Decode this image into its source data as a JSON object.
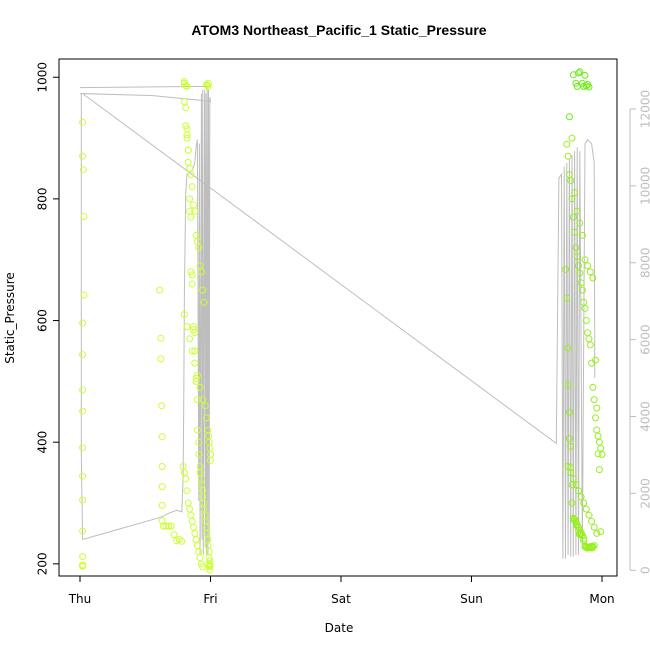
{
  "chart_data": {
    "type": "scatter",
    "title": "ATOM3 Northeast_Pacific_1 Static_Pressure",
    "xlabel": "Date",
    "ylabel": "Static_Pressure",
    "x_ticks": [
      "Thu",
      "Fri",
      "Sat",
      "Sun",
      "Mon"
    ],
    "xlim_days": [
      -0.2,
      4.1
    ],
    "ylim": [
      180,
      1030
    ],
    "y_ticks": [
      200,
      400,
      600,
      800,
      1000
    ],
    "y2lim": [
      -150,
      13300
    ],
    "y2_ticks": [
      0,
      2000,
      4000,
      6000,
      8000,
      10000,
      12000
    ],
    "y2_color": "#bdbdbd",
    "grid": false,
    "point_color_low": "#ccff33",
    "point_color_high": "#66ee11",
    "line_color": "#bdbdbd",
    "secondary_line": [
      [
        0.0,
        12400
      ],
      [
        0.01,
        12400
      ],
      [
        0.01,
        11000
      ],
      [
        0.01,
        7000
      ],
      [
        0.01,
        3000
      ],
      [
        0.02,
        800
      ],
      [
        0.62,
        1380
      ],
      [
        0.68,
        1480
      ],
      [
        0.74,
        1560
      ],
      [
        0.78,
        1520
      ],
      [
        0.79,
        2400
      ],
      [
        0.795,
        4200
      ],
      [
        0.8,
        7200
      ],
      [
        0.81,
        9800
      ],
      [
        0.82,
        10300
      ],
      [
        0.86,
        10400
      ],
      [
        0.88,
        10600
      ],
      [
        0.89,
        11000
      ],
      [
        0.9,
        11200
      ],
      [
        0.91,
        1800
      ],
      [
        0.915,
        11100
      ],
      [
        0.92,
        400
      ],
      [
        0.93,
        12400
      ],
      [
        0.935,
        800
      ],
      [
        0.94,
        12500
      ],
      [
        0.945,
        400
      ],
      [
        0.955,
        12500
      ],
      [
        0.96,
        600
      ],
      [
        0.965,
        12400
      ],
      [
        0.97,
        400
      ],
      [
        0.975,
        12600
      ],
      [
        0.98,
        400
      ],
      [
        0.985,
        12500
      ],
      [
        0.99,
        700
      ],
      [
        0.995,
        12300
      ],
      [
        1.0,
        12200
      ],
      [
        0.55,
        12350
      ],
      [
        0.02,
        12400
      ],
      [
        3.65,
        3300
      ],
      [
        3.67,
        10200
      ],
      [
        3.69,
        10300
      ],
      [
        3.7,
        300
      ],
      [
        3.71,
        10500
      ],
      [
        3.72,
        300
      ],
      [
        3.73,
        10600
      ],
      [
        3.74,
        400
      ],
      [
        3.75,
        10700
      ],
      [
        3.76,
        350
      ],
      [
        3.77,
        10800
      ],
      [
        3.78,
        350
      ],
      [
        3.79,
        10900
      ],
      [
        3.8,
        400
      ],
      [
        3.81,
        11000
      ],
      [
        3.82,
        400
      ],
      [
        3.83,
        10900
      ],
      [
        3.85,
        700
      ],
      [
        3.87,
        11100
      ],
      [
        3.89,
        11200
      ],
      [
        3.92,
        11100
      ],
      [
        3.94,
        10600
      ],
      [
        3.945,
        5000
      ]
    ],
    "primary_flat_line": [
      [
        0.0,
        983
      ],
      [
        1.0,
        985
      ]
    ],
    "series": [
      {
        "x": [
          0.02,
          0.02,
          0.025,
          0.03,
          0.03,
          0.02,
          0.02,
          0.02,
          0.02,
          0.02,
          0.02,
          0.02,
          0.02,
          0.02,
          0.02,
          0.02,
          0.02,
          0.02,
          0.61,
          0.62,
          0.62,
          0.625,
          0.63,
          0.63,
          0.63,
          0.63,
          0.63,
          0.64,
          0.64,
          0.66,
          0.68,
          0.7,
          0.72,
          0.74,
          0.76,
          0.78,
          0.8,
          0.8,
          0.81,
          0.82,
          0.82,
          0.83,
          0.83,
          0.84,
          0.84,
          0.85,
          0.85,
          0.86,
          0.86,
          0.87,
          0.87,
          0.88,
          0.88,
          0.89,
          0.89,
          0.9,
          0.9,
          0.91,
          0.91,
          0.92,
          0.92,
          0.93,
          0.93,
          0.94,
          0.94,
          0.95,
          0.95,
          0.96,
          0.96,
          0.97,
          0.97,
          0.98,
          0.98,
          0.99,
          0.99,
          0.995,
          0.995,
          0.99,
          0.995,
          0.995,
          0.995,
          0.98,
          0.985,
          0.97,
          0.975,
          0.8,
          0.81,
          0.82,
          0.8,
          0.81,
          0.82,
          0.83,
          0.84,
          0.85,
          0.86,
          0.87,
          0.88,
          0.89,
          0.9,
          0.91,
          0.92,
          0.93,
          0.94,
          0.95,
          0.8,
          0.82,
          0.84,
          0.86,
          0.88,
          0.9,
          0.92,
          0.94,
          0.96,
          0.97,
          0.98,
          0.985,
          0.99,
          0.995,
          1.0,
          1.0,
          0.79,
          0.8,
          0.81,
          0.82,
          0.83,
          0.84,
          0.85,
          0.86,
          0.87,
          0.88,
          0.89,
          0.9,
          0.91,
          0.92,
          0.93,
          0.94
        ],
        "y": [
          926,
          870,
          848,
          771,
          642,
          596,
          544,
          486,
          451,
          391,
          344,
          305,
          254,
          212,
          198,
          196,
          197,
          198,
          650,
          571,
          537,
          460,
          409,
          360,
          327,
          296,
          271,
          262,
          262,
          262,
          262,
          262,
          248,
          238,
          240,
          237,
          993,
          990,
          950,
          915,
          905,
          880,
          860,
          800,
          780,
          770,
          680,
          675,
          660,
          590,
          585,
          580,
          550,
          505,
          500,
          470,
          420,
          400,
          380,
          360,
          350,
          340,
          330,
          320,
          310,
          300,
          290,
          280,
          270,
          260,
          250,
          240,
          230,
          220,
          210,
          205,
          200,
          195,
          190,
          198,
          196,
          985,
          990,
          988,
          987,
          990,
          986,
          985,
          960,
          920,
          900,
          880,
          850,
          840,
          820,
          790,
          780,
          740,
          730,
          720,
          690,
          680,
          650,
          630,
          610,
          590,
          570,
          550,
          530,
          510,
          490,
          470,
          460,
          440,
          420,
          410,
          400,
          390,
          380,
          370,
          360,
          350,
          340,
          320,
          300,
          290,
          280,
          270,
          260,
          250,
          240,
          230,
          220,
          210,
          200,
          195
        ]
      },
      {
        "x": [
          3.72,
          3.73,
          3.74,
          3.74,
          3.75,
          3.75,
          3.76,
          3.76,
          3.77,
          3.77,
          3.78,
          3.78,
          3.79,
          3.79,
          3.8,
          3.8,
          3.81,
          3.81,
          3.82,
          3.82,
          3.83,
          3.83,
          3.84,
          3.84,
          3.85,
          3.85,
          3.86,
          3.86,
          3.87,
          3.87,
          3.88,
          3.88,
          3.89,
          3.89,
          3.9,
          3.9,
          3.91,
          3.91,
          3.92,
          3.92,
          3.93,
          3.93,
          3.94,
          3.95,
          3.96,
          3.97,
          3.98,
          3.99,
          3.78,
          3.8,
          3.81,
          3.82,
          3.83,
          3.85,
          3.86,
          3.87,
          3.88,
          3.89,
          3.9,
          3.73,
          3.74,
          3.75,
          3.76,
          3.77,
          3.78,
          3.79,
          3.8,
          3.81,
          3.82,
          3.83,
          3.84,
          3.85,
          3.86,
          3.87,
          3.88,
          3.89,
          3.9,
          3.91,
          3.92,
          3.93,
          3.94,
          3.95,
          3.96,
          3.97,
          3.98,
          3.99,
          4.0,
          3.74,
          3.76,
          3.78,
          3.8,
          3.82,
          3.84,
          3.86,
          3.88,
          3.9,
          3.92,
          3.94,
          3.96,
          3.75,
          3.77,
          3.79,
          3.81,
          3.83,
          3.85,
          3.87,
          3.89,
          3.91,
          3.93
        ],
        "y": [
          684,
          637,
          555,
          494,
          449,
          406,
          393,
          358,
          330,
          300,
          275,
          274,
          272,
          273,
          270,
          268,
          265,
          262,
          260,
          255,
          250,
          248,
          249,
          252,
          246,
          247,
          242,
          238,
          230,
          228,
          227,
          227,
          226,
          226,
          227,
          227,
          228,
          228,
          229,
          226,
          227,
          228,
          230,
          535,
          456,
          381,
          355,
          253,
          1004,
          990,
          985,
          1007,
          1009,
          990,
          985,
          1003,
          986,
          988,
          984,
          890,
          870,
          840,
          830,
          800,
          770,
          745,
          720,
          705,
          690,
          678,
          662,
          650,
          630,
          620,
          600,
          580,
          570,
          560,
          530,
          490,
          470,
          440,
          420,
          410,
          400,
          390,
          380,
          360,
          350,
          340,
          330,
          320,
          310,
          300,
          290,
          280,
          270,
          260,
          250,
          935,
          900,
          810,
          780,
          760,
          740,
          700,
          690,
          680,
          670
        ]
      }
    ]
  }
}
